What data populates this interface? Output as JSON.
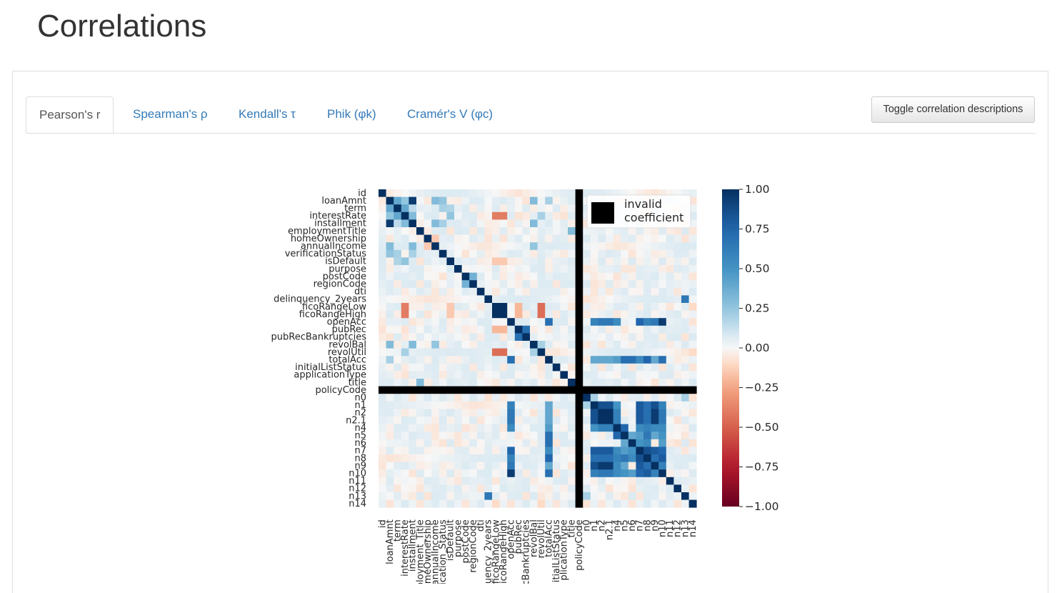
{
  "page": {
    "title": "Correlations"
  },
  "tabs": [
    {
      "label": "Pearson's r",
      "active": true
    },
    {
      "label": "Spearman's ρ",
      "active": false
    },
    {
      "label": "Kendall's τ",
      "active": false
    },
    {
      "label": "Phik (φk)",
      "active": false
    },
    {
      "label": "Cramér's V (φc)",
      "active": false
    }
  ],
  "toggle_button": {
    "label": "Toggle correlation descriptions"
  },
  "colors": {
    "link": "#337ab7",
    "positive": "#053061",
    "negative": "#67001f",
    "invalid": "#000000"
  },
  "chart_data": {
    "type": "heatmap",
    "variables": [
      "id",
      "loanAmnt",
      "term",
      "interestRate",
      "installment",
      "employmentTitle",
      "homeOwnership",
      "annualIncome",
      "verificationStatus",
      "isDefault",
      "purpose",
      "postCode",
      "regionCode",
      "dti",
      "delinquency_2years",
      "ficoRangeLow",
      "ficoRangeHigh",
      "openAcc",
      "pubRec",
      "pubRecBankruptcies",
      "revolBal",
      "revolUtil",
      "totalAcc",
      "initialListStatus",
      "applicationType",
      "title",
      "policyCode",
      "n0",
      "n1",
      "n2",
      "n2.1",
      "n4",
      "n5",
      "n6",
      "n7",
      "n8",
      "n9",
      "n10",
      "n11",
      "n12",
      "n13",
      "n14"
    ],
    "x_tick_labels": [
      "id",
      "loanAmnt",
      "term",
      "interestRate",
      "installment",
      "ployment_Title",
      "meOwnership",
      "annualIncome",
      "fication_Status",
      "isDefault",
      "purpose",
      "postCode",
      "regionCode",
      "dti",
      "uency_2years",
      "ficoRangeLow",
      "icoRangeHigh",
      "openAcc",
      "pubRec",
      "cBankruptcies",
      "revolBal",
      "revolUtil",
      "totalAcc",
      "itialListStatus",
      "plicationType",
      "title",
      "policyCode",
      "n0",
      "n1",
      "n2",
      "n2.1",
      "n4",
      "n5",
      "n6",
      "n7",
      "n8",
      "n9",
      "n10",
      "n11",
      "n12",
      "n13",
      "n14"
    ],
    "invalid_variable": "policyCode",
    "legend": {
      "label_line1": "invalid",
      "label_line2": "coefficient",
      "position": "top-right"
    },
    "colorbar": {
      "ticks": [
        "1.00",
        "0.75",
        "0.50",
        "0.25",
        "0.00",
        "−0.25",
        "−0.50",
        "−0.75",
        "−1.00"
      ],
      "range": [
        -1,
        1
      ],
      "colormap": "RdBu"
    },
    "correlations": [
      {
        "a": "loanAmnt",
        "b": "term",
        "r": 0.4
      },
      {
        "a": "loanAmnt",
        "b": "interestRate",
        "r": 0.25
      },
      {
        "a": "loanAmnt",
        "b": "installment",
        "r": 0.95
      },
      {
        "a": "loanAmnt",
        "b": "annualIncome",
        "r": 0.3
      },
      {
        "a": "loanAmnt",
        "b": "verificationStatus",
        "r": 0.25
      },
      {
        "a": "loanAmnt",
        "b": "revolBal",
        "r": 0.3
      },
      {
        "a": "loanAmnt",
        "b": "totalAcc",
        "r": 0.2
      },
      {
        "a": "term",
        "b": "interestRate",
        "r": 0.4
      },
      {
        "a": "term",
        "b": "installment",
        "r": 0.15
      },
      {
        "a": "term",
        "b": "verificationStatus",
        "r": 0.2
      },
      {
        "a": "term",
        "b": "isDefault",
        "r": 0.18
      },
      {
        "a": "interestRate",
        "b": "installment",
        "r": 0.3
      },
      {
        "a": "interestRate",
        "b": "isDefault",
        "r": 0.25
      },
      {
        "a": "interestRate",
        "b": "ficoRangeLow",
        "r": -0.4
      },
      {
        "a": "interestRate",
        "b": "ficoRangeHigh",
        "r": -0.4
      },
      {
        "a": "interestRate",
        "b": "revolUtil",
        "r": 0.2
      },
      {
        "a": "installment",
        "b": "annualIncome",
        "r": 0.3
      },
      {
        "a": "installment",
        "b": "verificationStatus",
        "r": 0.2
      },
      {
        "a": "installment",
        "b": "revolBal",
        "r": 0.3
      },
      {
        "a": "employmentTitle",
        "b": "title",
        "r": 0.3
      },
      {
        "a": "homeOwnership",
        "b": "annualIncome",
        "r": -0.15
      },
      {
        "a": "annualIncome",
        "b": "revolBal",
        "r": 0.25
      },
      {
        "a": "isDefault",
        "b": "ficoRangeLow",
        "r": -0.15
      },
      {
        "a": "isDefault",
        "b": "ficoRangeHigh",
        "r": -0.15
      },
      {
        "a": "postCode",
        "b": "regionCode",
        "r": 0.35
      },
      {
        "a": "delinquency_2years",
        "b": "n13",
        "r": 0.65
      },
      {
        "a": "ficoRangeLow",
        "b": "ficoRangeHigh",
        "r": 1.0
      },
      {
        "a": "ficoRangeLow",
        "b": "pubRec",
        "r": -0.2
      },
      {
        "a": "ficoRangeLow",
        "b": "revolUtil",
        "r": -0.45
      },
      {
        "a": "ficoRangeHigh",
        "b": "pubRec",
        "r": -0.2
      },
      {
        "a": "ficoRangeHigh",
        "b": "revolUtil",
        "r": -0.45
      },
      {
        "a": "openAcc",
        "b": "totalAcc",
        "r": 0.7
      },
      {
        "a": "openAcc",
        "b": "n1",
        "r": 0.6
      },
      {
        "a": "openAcc",
        "b": "n2",
        "r": 0.65
      },
      {
        "a": "openAcc",
        "b": "n2.1",
        "r": 0.65
      },
      {
        "a": "openAcc",
        "b": "n4",
        "r": 0.55
      },
      {
        "a": "openAcc",
        "b": "n7",
        "r": 0.75
      },
      {
        "a": "openAcc",
        "b": "n8",
        "r": 0.6
      },
      {
        "a": "openAcc",
        "b": "n9",
        "r": 0.65
      },
      {
        "a": "openAcc",
        "b": "n10",
        "r": 0.95
      },
      {
        "a": "pubRec",
        "b": "pubRecBankruptcies",
        "r": 0.7
      },
      {
        "a": "revolBal",
        "b": "revolUtil",
        "r": 0.2
      },
      {
        "a": "totalAcc",
        "b": "n1",
        "r": 0.4
      },
      {
        "a": "totalAcc",
        "b": "n2",
        "r": 0.4
      },
      {
        "a": "totalAcc",
        "b": "n2.1",
        "r": 0.4
      },
      {
        "a": "totalAcc",
        "b": "n4",
        "r": 0.45
      },
      {
        "a": "totalAcc",
        "b": "n5",
        "r": 0.7
      },
      {
        "a": "totalAcc",
        "b": "n6",
        "r": 0.7
      },
      {
        "a": "totalAcc",
        "b": "n7",
        "r": 0.55
      },
      {
        "a": "totalAcc",
        "b": "n8",
        "r": 0.75
      },
      {
        "a": "totalAcc",
        "b": "n9",
        "r": 0.4
      },
      {
        "a": "totalAcc",
        "b": "n10",
        "r": 0.7
      },
      {
        "a": "n1",
        "b": "n2",
        "r": 0.85
      },
      {
        "a": "n1",
        "b": "n2.1",
        "r": 0.85
      },
      {
        "a": "n1",
        "b": "n4",
        "r": 0.5
      },
      {
        "a": "n1",
        "b": "n7",
        "r": 0.8
      },
      {
        "a": "n1",
        "b": "n8",
        "r": 0.7
      },
      {
        "a": "n1",
        "b": "n9",
        "r": 0.85
      },
      {
        "a": "n1",
        "b": "n10",
        "r": 0.6
      },
      {
        "a": "n2",
        "b": "n2.1",
        "r": 1.0
      },
      {
        "a": "n2",
        "b": "n4",
        "r": 0.6
      },
      {
        "a": "n2",
        "b": "n7",
        "r": 0.8
      },
      {
        "a": "n2",
        "b": "n8",
        "r": 0.7
      },
      {
        "a": "n2",
        "b": "n9",
        "r": 0.95
      },
      {
        "a": "n2",
        "b": "n10",
        "r": 0.65
      },
      {
        "a": "n2.1",
        "b": "n4",
        "r": 0.6
      },
      {
        "a": "n2.1",
        "b": "n7",
        "r": 0.8
      },
      {
        "a": "n2.1",
        "b": "n8",
        "r": 0.7
      },
      {
        "a": "n2.1",
        "b": "n9",
        "r": 0.95
      },
      {
        "a": "n2.1",
        "b": "n10",
        "r": 0.65
      },
      {
        "a": "n4",
        "b": "n5",
        "r": 0.75
      },
      {
        "a": "n4",
        "b": "n7",
        "r": 0.55
      },
      {
        "a": "n4",
        "b": "n8",
        "r": 0.6
      },
      {
        "a": "n4",
        "b": "n9",
        "r": 0.55
      },
      {
        "a": "n4",
        "b": "n10",
        "r": 0.55
      },
      {
        "a": "n5",
        "b": "n6",
        "r": 0.4
      },
      {
        "a": "n5",
        "b": "n7",
        "r": 0.45
      },
      {
        "a": "n5",
        "b": "n8",
        "r": 0.65
      },
      {
        "a": "n5",
        "b": "n9",
        "r": 0.4
      },
      {
        "a": "n5",
        "b": "n10",
        "r": 0.5
      },
      {
        "a": "n6",
        "b": "n7",
        "r": 0.5
      },
      {
        "a": "n6",
        "b": "n8",
        "r": 0.55
      },
      {
        "a": "n6",
        "b": "n10",
        "r": 0.45
      },
      {
        "a": "n7",
        "b": "n8",
        "r": 0.85
      },
      {
        "a": "n7",
        "b": "n9",
        "r": 0.8
      },
      {
        "a": "n7",
        "b": "n10",
        "r": 0.75
      },
      {
        "a": "n8",
        "b": "n9",
        "r": 0.7
      },
      {
        "a": "n8",
        "b": "n10",
        "r": 0.8
      },
      {
        "a": "n9",
        "b": "n10",
        "r": 0.6
      },
      {
        "a": "n0",
        "b": "n1",
        "r": 0.2
      },
      {
        "a": "n0",
        "b": "n13",
        "r": 0.2
      },
      {
        "a": "n14",
        "b": "ficoRangeLow",
        "r": -0.1
      },
      {
        "a": "revolUtil",
        "b": "n14",
        "r": -0.1
      }
    ]
  }
}
